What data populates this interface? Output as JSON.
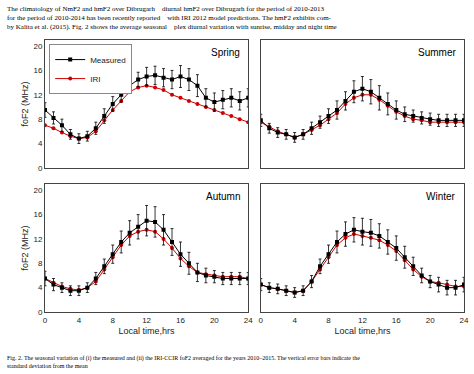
{
  "chart_data": [
    {
      "type": "line",
      "annotations": [
        "Spring"
      ],
      "ylabel": "foF2 (MHz)",
      "x": [
        0,
        1,
        2,
        3,
        4,
        5,
        6,
        7,
        8,
        9,
        10,
        11,
        12,
        13,
        14,
        15,
        16,
        17,
        18,
        19,
        20,
        21,
        22,
        23,
        24
      ],
      "series": [
        {
          "name": "Measured",
          "color": "#000000",
          "marker": "square",
          "values": [
            9.5,
            8.2,
            7.0,
            5.5,
            4.8,
            5.2,
            6.5,
            8.5,
            10.5,
            12.0,
            13.5,
            14.5,
            15.0,
            15.2,
            14.8,
            14.5,
            15.0,
            14.5,
            13.5,
            11.5,
            10.8,
            11.2,
            11.5,
            11.0,
            11.5
          ],
          "error": [
            1.2,
            1.0,
            1.0,
            0.8,
            0.8,
            0.8,
            1.0,
            1.2,
            1.2,
            1.2,
            1.2,
            1.2,
            1.5,
            1.5,
            1.5,
            1.5,
            1.8,
            1.8,
            1.8,
            1.5,
            1.5,
            1.5,
            1.5,
            1.5,
            1.5
          ]
        },
        {
          "name": "IRI",
          "color": "#cc0000",
          "marker": "circle",
          "values": [
            7.0,
            6.5,
            5.8,
            5.2,
            4.8,
            5.0,
            6.0,
            7.8,
            9.5,
            11.0,
            12.5,
            13.2,
            13.5,
            13.2,
            12.8,
            12.0,
            11.5,
            11.0,
            10.5,
            10.0,
            9.5,
            9.0,
            8.5,
            8.0,
            7.5
          ]
        }
      ],
      "xlim": [
        0,
        24
      ],
      "ylim": [
        0,
        21
      ],
      "xticks": [
        0,
        4,
        8,
        12,
        16,
        20,
        24
      ],
      "yticks": [
        0,
        4,
        8,
        12,
        16,
        20
      ],
      "grid": false,
      "legend": "upper left",
      "tick_labels": "y"
    },
    {
      "type": "line",
      "annotations": [
        "Summer"
      ],
      "x": [
        0,
        1,
        2,
        3,
        4,
        5,
        6,
        7,
        8,
        9,
        10,
        11,
        12,
        13,
        14,
        15,
        16,
        17,
        18,
        19,
        20,
        21,
        22,
        23,
        24
      ],
      "series": [
        {
          "name": "Measured",
          "color": "#000000",
          "marker": "square",
          "values": [
            7.8,
            6.5,
            5.8,
            5.5,
            5.0,
            5.5,
            6.5,
            7.5,
            8.5,
            9.5,
            11.0,
            12.5,
            13.0,
            12.5,
            11.5,
            10.5,
            9.5,
            8.8,
            8.5,
            8.2,
            8.0,
            7.8,
            7.8,
            7.8,
            7.8
          ],
          "error": [
            1.0,
            0.8,
            0.8,
            0.8,
            0.8,
            0.8,
            1.0,
            1.0,
            1.2,
            1.5,
            1.5,
            1.8,
            2.0,
            2.0,
            2.0,
            1.8,
            1.5,
            1.2,
            1.0,
            1.0,
            1.0,
            1.0,
            1.0,
            1.0,
            1.0
          ]
        },
        {
          "name": "IRI",
          "color": "#cc0000",
          "marker": "circle",
          "values": [
            7.5,
            6.8,
            6.0,
            5.5,
            5.0,
            5.5,
            6.2,
            7.0,
            8.0,
            9.0,
            10.5,
            11.5,
            12.0,
            12.0,
            11.2,
            10.2,
            9.2,
            8.5,
            8.0,
            7.8,
            7.5,
            7.5,
            7.5,
            7.5,
            7.5
          ]
        }
      ],
      "xlim": [
        0,
        24
      ],
      "ylim": [
        0,
        21
      ],
      "xticks": [
        0,
        4,
        8,
        12,
        16,
        20,
        24
      ],
      "yticks": [
        0,
        4,
        8,
        12,
        16,
        20
      ],
      "grid": false,
      "tick_labels": false
    },
    {
      "type": "line",
      "annotations": [
        "Autumn"
      ],
      "xlabel": "Local time,hrs",
      "ylabel": "foF2 (MHz)",
      "x": [
        0,
        1,
        2,
        3,
        4,
        5,
        6,
        7,
        8,
        9,
        10,
        11,
        12,
        13,
        14,
        15,
        16,
        17,
        18,
        19,
        20,
        21,
        22,
        23,
        24
      ],
      "series": [
        {
          "name": "Measured",
          "color": "#000000",
          "marker": "square",
          "values": [
            5.5,
            4.5,
            4.0,
            3.5,
            3.5,
            4.0,
            5.5,
            7.5,
            9.5,
            11.5,
            13.0,
            14.0,
            15.0,
            14.8,
            13.5,
            11.5,
            9.5,
            8.0,
            6.5,
            6.0,
            5.8,
            5.5,
            5.5,
            5.5,
            5.5
          ],
          "error": [
            1.2,
            1.0,
            0.8,
            0.8,
            0.8,
            0.8,
            1.0,
            1.2,
            1.5,
            1.8,
            2.0,
            2.0,
            2.5,
            2.5,
            2.5,
            2.2,
            2.0,
            1.8,
            1.5,
            1.2,
            1.0,
            1.0,
            1.0,
            1.0,
            1.0
          ]
        },
        {
          "name": "IRI",
          "color": "#cc0000",
          "marker": "circle",
          "values": [
            5.5,
            4.8,
            4.2,
            3.8,
            3.6,
            4.0,
            5.0,
            7.0,
            9.0,
            11.0,
            12.5,
            13.2,
            13.5,
            13.2,
            12.0,
            10.5,
            8.8,
            7.5,
            6.5,
            6.2,
            6.0,
            5.8,
            5.8,
            5.8,
            5.5
          ]
        }
      ],
      "xlim": [
        0,
        24
      ],
      "ylim": [
        0,
        21
      ],
      "xticks": [
        0,
        4,
        8,
        12,
        16,
        20,
        24
      ],
      "yticks": [
        0,
        4,
        8,
        12,
        16,
        20
      ],
      "grid": false
    },
    {
      "type": "line",
      "annotations": [
        "Winter"
      ],
      "xlabel": "Local time,hrs",
      "x": [
        0,
        1,
        2,
        3,
        4,
        5,
        6,
        7,
        8,
        9,
        10,
        11,
        12,
        13,
        14,
        15,
        16,
        17,
        18,
        19,
        20,
        21,
        22,
        23,
        24
      ],
      "series": [
        {
          "name": "Measured",
          "color": "#000000",
          "marker": "square",
          "values": [
            4.5,
            4.0,
            3.8,
            3.5,
            3.2,
            3.5,
            5.0,
            7.5,
            9.5,
            11.5,
            12.8,
            13.5,
            13.2,
            13.0,
            12.5,
            11.5,
            10.5,
            9.0,
            7.5,
            6.0,
            5.0,
            4.5,
            4.0,
            4.0,
            4.5
          ],
          "error": [
            1.0,
            0.8,
            0.8,
            0.8,
            0.8,
            0.8,
            1.0,
            1.2,
            1.5,
            1.8,
            2.0,
            2.0,
            2.2,
            2.2,
            2.0,
            2.0,
            2.0,
            1.8,
            1.5,
            1.2,
            1.0,
            1.2,
            1.2,
            1.2,
            1.2
          ]
        },
        {
          "name": "IRI",
          "color": "#cc0000",
          "marker": "circle",
          "values": [
            4.5,
            4.0,
            3.8,
            3.5,
            3.2,
            3.5,
            5.0,
            7.0,
            9.0,
            11.0,
            12.2,
            12.8,
            12.5,
            12.2,
            11.8,
            11.0,
            10.0,
            8.5,
            7.0,
            5.8,
            5.0,
            4.8,
            4.5,
            4.2,
            4.2
          ]
        }
      ],
      "xlim": [
        0,
        24
      ],
      "ylim": [
        0,
        21
      ],
      "xticks": [
        0,
        4,
        8,
        12,
        16,
        20,
        24
      ],
      "yticks": [
        0,
        4,
        8,
        12,
        16,
        20
      ],
      "grid": false,
      "tick_labels": "x"
    }
  ],
  "header": [
    "The climatology of NmF2 and hmF2 over Dibrugarh    diurnal hmF2 over Dibrugarh for the period of 2010-2013",
    "for the period of 2010-2014 has been recently reported    with IRI 2012 model predictions. The hmF2 exhibits com-",
    "by Kalita et al. (2015). Fig. 2 shows the average seasonal    plex diurnal variation with sunrise, midday and night time"
  ],
  "caption": "Fig. 2. The seasonal variation of (i) the measured and (ii) the IRI-CCIR foF2 averaged for the years 2010–2015. The vertical error bars indicate the\nstandard deviation from the mean"
}
